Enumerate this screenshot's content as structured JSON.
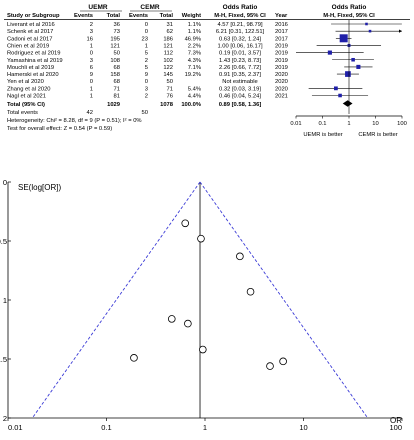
{
  "forest": {
    "group_uemr": "UEMR",
    "group_cemr": "CEMR",
    "group_or": "Odds Ratio",
    "group_or_plot": "Odds Ratio",
    "headers": {
      "study": "Study or Subgroup",
      "events1": "Events",
      "total1": "Total",
      "events2": "Events",
      "total2": "Total",
      "weight": "Weight",
      "or": "M-H, Fixed, 95% CI",
      "year": "Year",
      "or_plot": "M-H, Fixed, 95% CI"
    },
    "studies": [
      {
        "name": "Liverant et al 2016",
        "e1": "2",
        "t1": "36",
        "e2": "0",
        "t2": "31",
        "weight": "1.1%",
        "or_text": "4.57 [0.21, 98.79]",
        "year": "2016",
        "or": 4.57,
        "lo": 0.21,
        "hi": 98.79,
        "w": 1.1
      },
      {
        "name": "Schenk et al 2017",
        "e1": "3",
        "t1": "73",
        "e2": "0",
        "t2": "62",
        "weight": "1.1%",
        "or_text": "6.21 [0.31, 122.51]",
        "year": "2017",
        "or": 6.21,
        "lo": 0.31,
        "hi": 122.51,
        "w": 1.1
      },
      {
        "name": "Cadoni et al 2017",
        "e1": "16",
        "t1": "195",
        "e2": "23",
        "t2": "186",
        "weight": "46.9%",
        "or_text": "0.63 [0.32, 1.24]",
        "year": "2017",
        "or": 0.63,
        "lo": 0.32,
        "hi": 1.24,
        "w": 46.9
      },
      {
        "name": "Chien et al 2019",
        "e1": "1",
        "t1": "121",
        "e2": "1",
        "t2": "121",
        "weight": "2.2%",
        "or_text": "1.00 [0.06, 16.17]",
        "year": "2019",
        "or": 1.0,
        "lo": 0.06,
        "hi": 16.17,
        "w": 2.2
      },
      {
        "name": "Rodriguez et al 2019",
        "e1": "0",
        "t1": "50",
        "e2": "5",
        "t2": "112",
        "weight": "7.3%",
        "or_text": "0.19 [0.01, 3.57]",
        "year": "2019",
        "or": 0.19,
        "lo": 0.01,
        "hi": 3.57,
        "w": 7.3
      },
      {
        "name": "Yamashina et al 2019",
        "e1": "3",
        "t1": "108",
        "e2": "2",
        "t2": "102",
        "weight": "4.3%",
        "or_text": "1.43 [0.23, 8.73]",
        "year": "2019",
        "or": 1.43,
        "lo": 0.23,
        "hi": 8.73,
        "w": 4.3
      },
      {
        "name": "Mouchli et al 2019",
        "e1": "6",
        "t1": "68",
        "e2": "5",
        "t2": "122",
        "weight": "7.1%",
        "or_text": "2.26 [0.66, 7.72]",
        "year": "2019",
        "or": 2.26,
        "lo": 0.66,
        "hi": 7.72,
        "w": 7.1
      },
      {
        "name": "Hamerski et al 2020",
        "e1": "9",
        "t1": "158",
        "e2": "9",
        "t2": "145",
        "weight": "19.2%",
        "or_text": "0.91 [0.35, 2.37]",
        "year": "2020",
        "or": 0.91,
        "lo": 0.35,
        "hi": 2.37,
        "w": 19.2
      },
      {
        "name": "Yen et al 2020",
        "e1": "0",
        "t1": "68",
        "e2": "0",
        "t2": "50",
        "weight": "",
        "or_text": "Not estimable",
        "year": "2020",
        "or": null,
        "lo": null,
        "hi": null,
        "w": 0
      },
      {
        "name": "Zhang et al 2020",
        "e1": "1",
        "t1": "71",
        "e2": "3",
        "t2": "71",
        "weight": "5.4%",
        "or_text": "0.32 [0.03, 3.19]",
        "year": "2020",
        "or": 0.32,
        "lo": 0.03,
        "hi": 3.19,
        "w": 5.4
      },
      {
        "name": "Nagl et al 2021",
        "e1": "1",
        "t1": "81",
        "e2": "2",
        "t2": "76",
        "weight": "4.4%",
        "or_text": "0.46 [0.04, 5.24]",
        "year": "2021",
        "or": 0.46,
        "lo": 0.04,
        "hi": 5.24,
        "w": 4.4
      }
    ],
    "total": {
      "label": "Total (95% CI)",
      "t1": "1029",
      "t2": "1078",
      "weight": "100.0%",
      "or_text": "0.89 [0.58, 1.36]",
      "or": 0.89,
      "lo": 0.58,
      "hi": 1.36
    },
    "total_events": {
      "label": "Total events",
      "e1": "42",
      "e2": "50"
    },
    "heterogeneity": "Heterogeneity: Chi² = 8.28, df = 9 (P = 0.51); I² = 0%",
    "overall_effect": "Test for overall effect: Z = 0.54 (P = 0.59)",
    "axis_ticks": [
      {
        "v": 0.01,
        "label": "0.01"
      },
      {
        "v": 0.1,
        "label": "0.1"
      },
      {
        "v": 1,
        "label": "1"
      },
      {
        "v": 10,
        "label": "10"
      },
      {
        "v": 100,
        "label": "100"
      }
    ],
    "favours_left": "UEMR is better",
    "favours_right": "CEMR is better",
    "colors": {
      "box": "#1f1fa8",
      "line": "#000000"
    }
  },
  "chart_data": {
    "type": "scatter",
    "subtype": "funnel",
    "ylabel": "SE(log[OR])",
    "xlabel": "OR",
    "x_scale": "log",
    "xlim": [
      0.01,
      100
    ],
    "ylim": [
      0,
      2
    ],
    "y_inverted": true,
    "x_ticks": [
      {
        "v": 0.01,
        "label": "0.01"
      },
      {
        "v": 0.1,
        "label": "0.1"
      },
      {
        "v": 1,
        "label": "1"
      },
      {
        "v": 10,
        "label": "10"
      },
      {
        "v": 100,
        "label": "100"
      }
    ],
    "y_ticks": [
      {
        "v": 0,
        "label": "0"
      },
      {
        "v": 0.5,
        "label": "0.5"
      },
      {
        "v": 1,
        "label": "1"
      },
      {
        "v": 1.5,
        "label": "1.5"
      },
      {
        "v": 2,
        "label": "2"
      }
    ],
    "pooled_or": 0.89,
    "points": [
      {
        "x": 0.63,
        "y": 0.35
      },
      {
        "x": 0.91,
        "y": 0.48
      },
      {
        "x": 2.26,
        "y": 0.63
      },
      {
        "x": 2.9,
        "y": 0.93
      },
      {
        "x": 0.46,
        "y": 1.16
      },
      {
        "x": 0.67,
        "y": 1.2
      },
      {
        "x": 0.95,
        "y": 1.42
      },
      {
        "x": 0.19,
        "y": 1.49
      },
      {
        "x": 4.57,
        "y": 1.56
      },
      {
        "x": 6.21,
        "y": 1.52
      }
    ],
    "colors": {
      "point": "#000000",
      "funnel": "#3b3bd6",
      "line": "#000000"
    }
  }
}
